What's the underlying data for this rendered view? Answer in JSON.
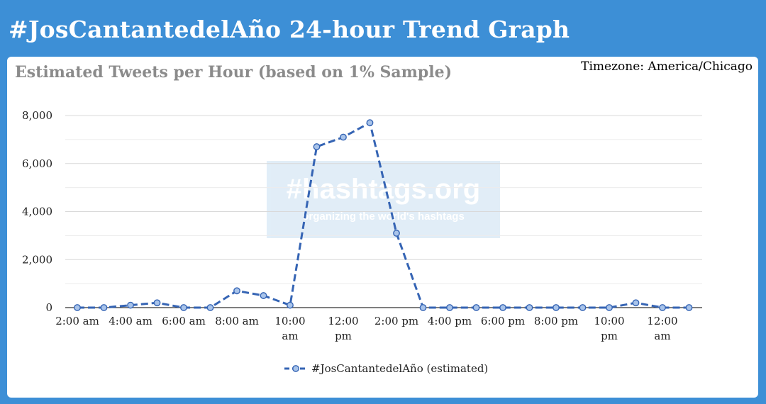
{
  "page": {
    "title": "#JosCantantedelAño 24-hour Trend Graph"
  },
  "chart_header": {
    "title": "Estimated Tweets per Hour (based on 1% Sample)",
    "timezone": "Timezone: America/Chicago"
  },
  "watermark": {
    "main": "#hashtags.org",
    "sub": "organizing the world's hashtags"
  },
  "colors": {
    "background": "#3d8fd6",
    "series": "#3564b4",
    "grid": "#d9d9d9",
    "axis": "#333333"
  },
  "chart_data": {
    "type": "line",
    "title": "Estimated Tweets per Hour (based on 1% Sample)",
    "xlabel": "",
    "ylabel": "",
    "ylim": [
      0,
      8000
    ],
    "yticks": [
      0,
      2000,
      4000,
      6000,
      8000
    ],
    "ytick_labels": [
      "0",
      "2,000",
      "4,000",
      "6,000",
      "8,000"
    ],
    "x": [
      "2:00 am",
      "3:00 am",
      "4:00 am",
      "5:00 am",
      "6:00 am",
      "7:00 am",
      "8:00 am",
      "9:00 am",
      "10:00 am",
      "11:00 am",
      "12:00 pm",
      "1:00 pm",
      "2:00 pm",
      "3:00 pm",
      "4:00 pm",
      "5:00 pm",
      "6:00 pm",
      "7:00 pm",
      "8:00 pm",
      "9:00 pm",
      "10:00 pm",
      "11:00 pm",
      "12:00 am",
      "1:00 am"
    ],
    "xtick_labels": [
      {
        "index": 0,
        "lines": [
          "2:00 am"
        ]
      },
      {
        "index": 2,
        "lines": [
          "4:00 am"
        ]
      },
      {
        "index": 4,
        "lines": [
          "6:00 am"
        ]
      },
      {
        "index": 6,
        "lines": [
          "8:00 am"
        ]
      },
      {
        "index": 8,
        "lines": [
          "10:00",
          "am"
        ]
      },
      {
        "index": 10,
        "lines": [
          "12:00",
          "pm"
        ]
      },
      {
        "index": 12,
        "lines": [
          "2:00 pm"
        ]
      },
      {
        "index": 14,
        "lines": [
          "4:00 pm"
        ]
      },
      {
        "index": 16,
        "lines": [
          "6:00 pm"
        ]
      },
      {
        "index": 18,
        "lines": [
          "8:00 pm"
        ]
      },
      {
        "index": 20,
        "lines": [
          "10:00",
          "pm"
        ]
      },
      {
        "index": 22,
        "lines": [
          "12:00",
          "am"
        ]
      }
    ],
    "series": [
      {
        "name": "#JosCantantedelAño (estimated)",
        "values": [
          0,
          0,
          100,
          200,
          0,
          0,
          700,
          500,
          100,
          6700,
          7100,
          7700,
          3100,
          0,
          0,
          0,
          0,
          0,
          0,
          0,
          0,
          200,
          0,
          0
        ]
      }
    ],
    "grid": true,
    "legend": "bottom"
  }
}
